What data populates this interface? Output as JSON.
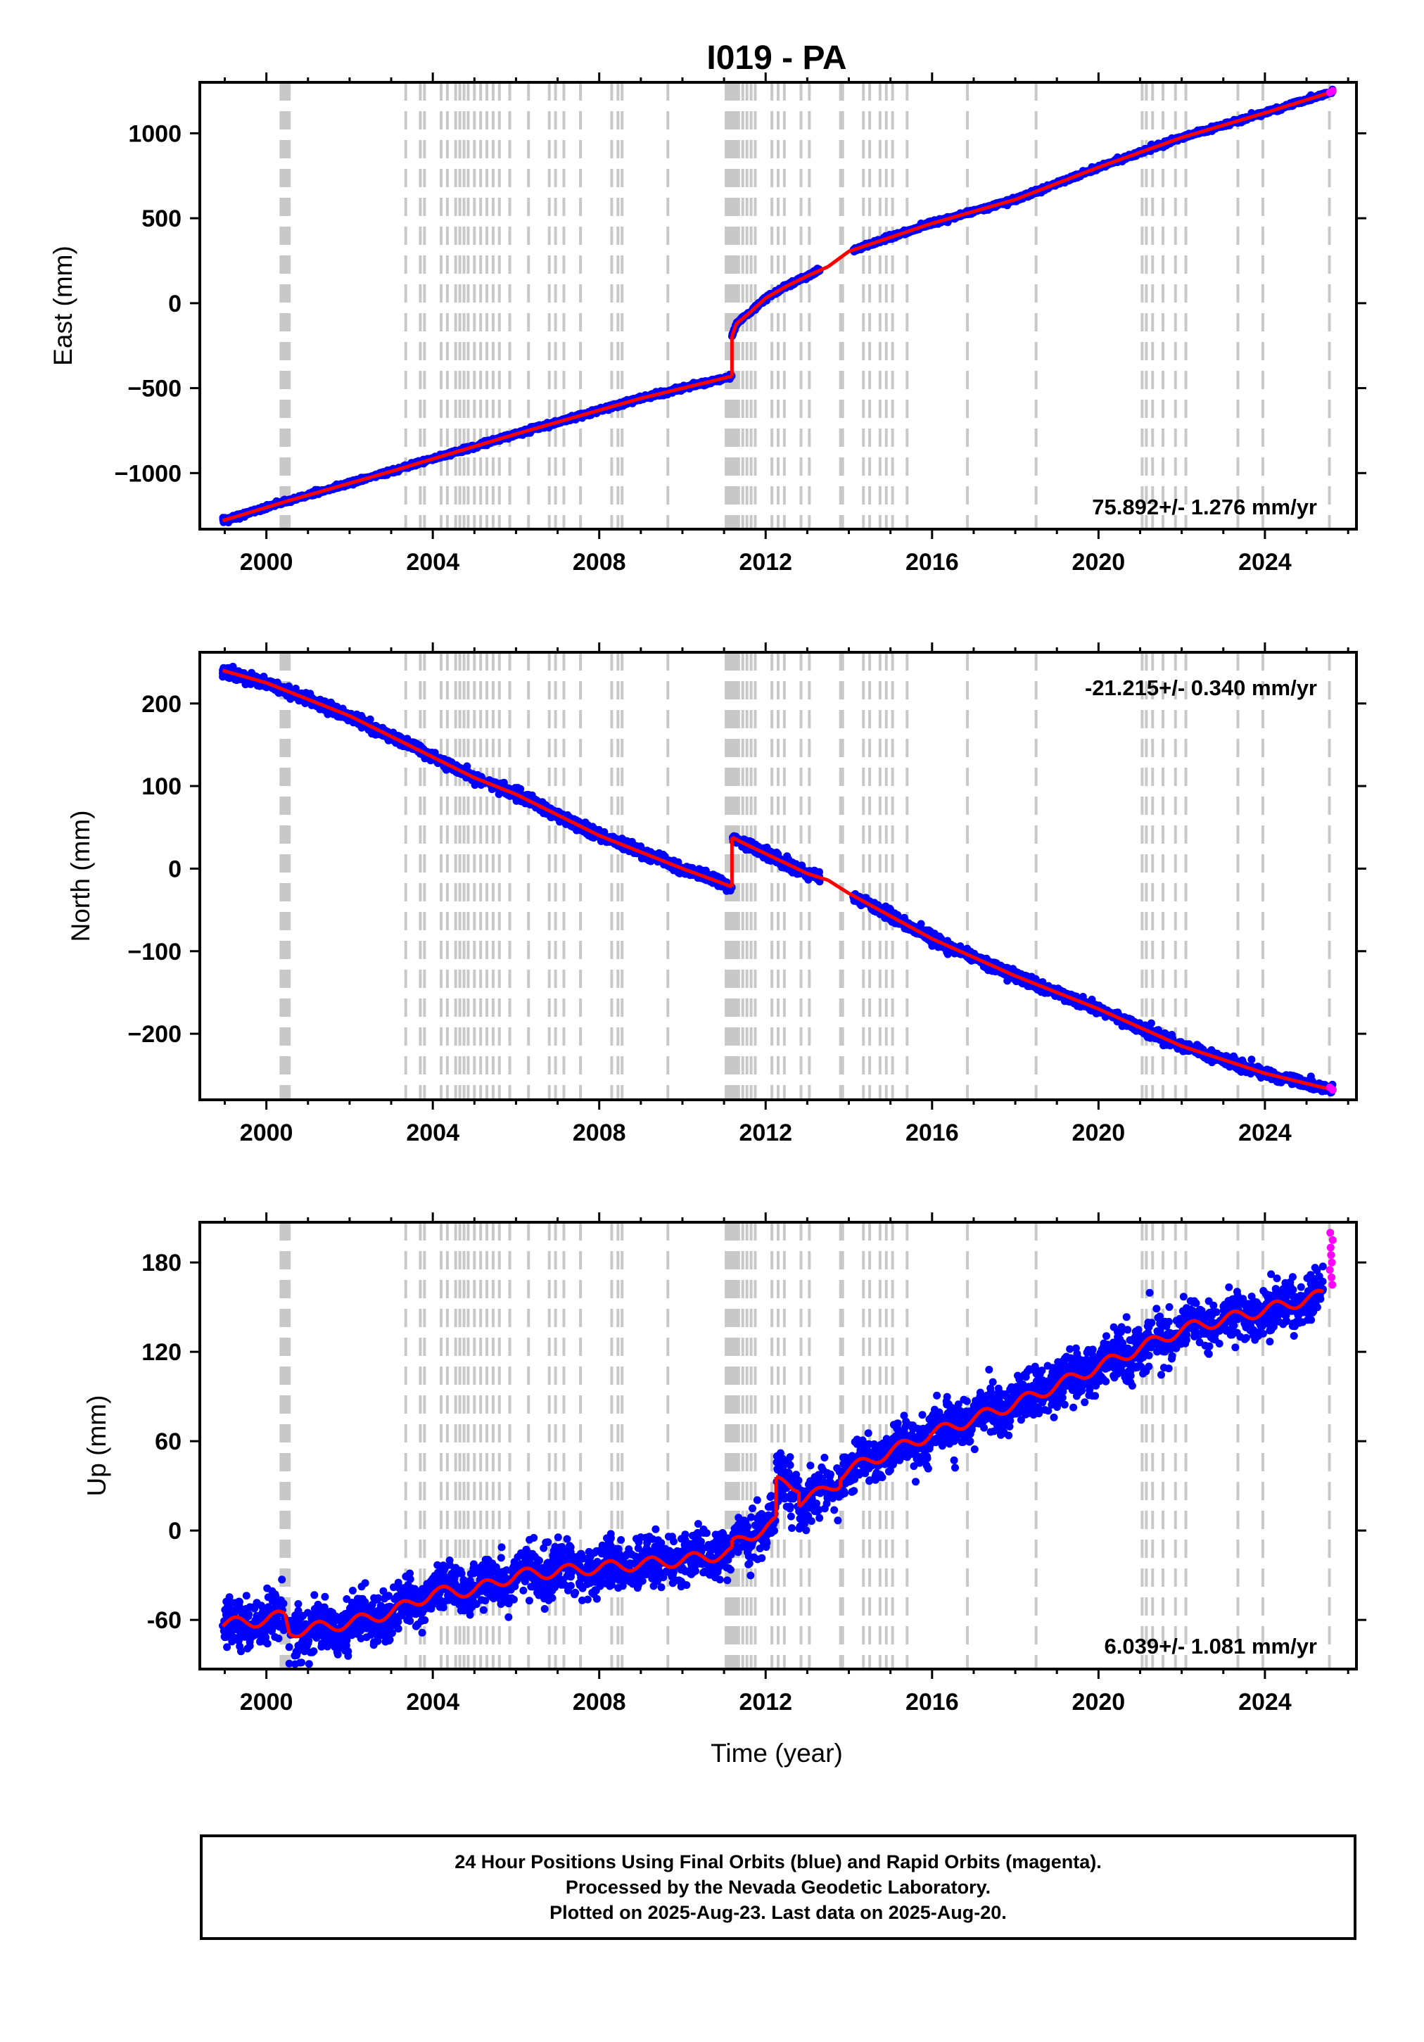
{
  "title": "I019 - PA",
  "x_label": "Time (year)",
  "colors": {
    "final_orbits": "#0000ff",
    "rapid_orbits": "#ff00ff",
    "model": "#ff0000",
    "events": "#c8c8c8"
  },
  "footer": {
    "line1": "24 Hour Positions Using Final Orbits (blue) and Rapid Orbits (magenta).",
    "line2": "Processed by the Nevada Geodetic Laboratory.",
    "line3": "Plotted on 2025-Aug-23. Last data on 2025-Aug-20."
  },
  "chart_data": [
    {
      "type": "scatter",
      "title": "I019 - PA",
      "ylabel": "East (mm)",
      "xlabel": "",
      "rate_label": "75.892+/- 1.276 mm/yr",
      "xlim": [
        1998.4,
        2026.2
      ],
      "ylim": [
        -1330,
        1300
      ],
      "x_ticks": [
        2000,
        2004,
        2008,
        2012,
        2016,
        2020,
        2024
      ],
      "x_tick_labels": [
        "2000",
        "2004",
        "2008",
        "2012",
        "2016",
        "2020",
        "2024"
      ],
      "y_ticks": [
        -1000,
        -500,
        0,
        500,
        1000
      ],
      "y_tick_labels": [
        "−1000",
        "−500",
        "0",
        "500",
        "1000"
      ],
      "segments": [
        {
          "x": [
            1998.95,
            2000.5,
            2003.0,
            2006.0,
            2009.0,
            2011.19
          ],
          "y": [
            -1280,
            -1165,
            -990,
            -770,
            -560,
            -430
          ]
        },
        {
          "x": [
            2011.19,
            2011.3,
            2011.6,
            2012.0,
            2012.5,
            2013.0,
            2013.5
          ],
          "y": [
            -195,
            -120,
            -60,
            30,
            100,
            160,
            215
          ]
        },
        {
          "x": [
            2013.5,
            2014.0,
            2016.0,
            2018.0,
            2020.0,
            2022.0,
            2024.0,
            2025.63
          ],
          "y": [
            215,
            305,
            470,
            610,
            800,
            975,
            1120,
            1245
          ]
        }
      ],
      "gap": [
        2013.3,
        2014.1
      ],
      "scatter_sigma": 6,
      "rapid": {
        "x": [
          2025.56,
          2025.63
        ],
        "y": [
          1240,
          1250
        ]
      },
      "grid": false,
      "legend": "none"
    },
    {
      "type": "scatter",
      "ylabel": "North (mm)",
      "xlabel": "",
      "rate_label": "-21.215+/- 0.340 mm/yr",
      "xlim": [
        1998.4,
        2026.2
      ],
      "ylim": [
        -280,
        262
      ],
      "x_ticks": [
        2000,
        2004,
        2008,
        2012,
        2016,
        2020,
        2024
      ],
      "x_tick_labels": [
        "2000",
        "2004",
        "2008",
        "2012",
        "2016",
        "2020",
        "2024"
      ],
      "y_ticks": [
        -200,
        -100,
        0,
        100,
        200
      ],
      "y_tick_labels": [
        "−200",
        "−100",
        "0",
        "100",
        "200"
      ],
      "segments": [
        {
          "x": [
            1998.95,
            2000.0,
            2001.0,
            2002.0,
            2003.0,
            2004.0,
            2005.0,
            2006.0,
            2007.0,
            2008.0,
            2009.0,
            2010.0,
            2011.19
          ],
          "y": [
            240,
            225,
            205,
            185,
            160,
            135,
            110,
            90,
            65,
            40,
            20,
            0,
            -22
          ]
        },
        {
          "x": [
            2011.19,
            2011.5,
            2012.0,
            2012.5,
            2013.0,
            2013.5
          ],
          "y": [
            38,
            30,
            18,
            6,
            -6,
            -14
          ]
        },
        {
          "x": [
            2013.5,
            2014.0,
            2016.0,
            2018.0,
            2020.0,
            2022.0,
            2024.0,
            2025.63
          ],
          "y": [
            -14,
            -30,
            -85,
            -130,
            -170,
            -215,
            -248,
            -268
          ]
        }
      ],
      "gap": [
        2013.3,
        2014.1
      ],
      "scatter_sigma": 3,
      "rapid": {
        "x": [
          2025.56,
          2025.63
        ],
        "y": [
          -265,
          -268
        ]
      },
      "grid": false,
      "legend": "none"
    },
    {
      "type": "scatter",
      "ylabel": "Up (mm)",
      "xlabel": "Time (year)",
      "rate_label": "6.039+/- 1.081 mm/yr",
      "xlim": [
        1998.4,
        2026.2
      ],
      "ylim": [
        -93,
        207
      ],
      "x_ticks": [
        2000,
        2004,
        2008,
        2012,
        2016,
        2020,
        2024
      ],
      "x_tick_labels": [
        "2000",
        "2004",
        "2008",
        "2012",
        "2016",
        "2020",
        "2024"
      ],
      "y_ticks": [
        -60,
        0,
        60,
        120,
        180
      ],
      "y_tick_labels": [
        "-60",
        "0",
        "60",
        "120",
        "180"
      ],
      "segments": [
        {
          "x": [
            1998.95,
            2000.0,
            2000.45
          ],
          "y": [
            -63,
            -60,
            -57
          ]
        },
        {
          "x": [
            2000.55,
            2002.0,
            2003.0,
            2004.0,
            2005.0,
            2006.0,
            2008.0,
            2010.0,
            2011.19
          ],
          "y": [
            -68,
            -62,
            -55,
            -42,
            -40,
            -30,
            -25,
            -20,
            -15
          ]
        },
        {
          "x": [
            2011.19,
            2011.5,
            2012.0,
            2012.25
          ],
          "y": [
            -10,
            -5,
            2,
            5
          ]
        },
        {
          "x": [
            2012.25,
            2012.5,
            2012.8
          ],
          "y": [
            32,
            32,
            30
          ]
        },
        {
          "x": [
            2012.8,
            2013.3,
            2013.8
          ],
          "y": [
            20,
            25,
            33
          ]
        },
        {
          "x": [
            2013.8,
            2014.5,
            2016.0,
            2018.0,
            2020.0,
            2022.0,
            2024.0,
            2025.4
          ],
          "y": [
            38,
            47,
            65,
            85,
            110,
            135,
            148,
            158
          ]
        }
      ],
      "seasonal_amp": 4,
      "scatter_sigma": 8,
      "rapid": {
        "x": [
          2025.56,
          2025.57,
          2025.58,
          2025.59,
          2025.6,
          2025.61,
          2025.62,
          2025.63
        ],
        "y": [
          175,
          200,
          190,
          185,
          170,
          180,
          165,
          195
        ]
      },
      "grid": false,
      "legend": "none"
    }
  ],
  "event_lines": [
    2000.35,
    2000.4,
    2000.45,
    2000.5,
    2000.55,
    2003.35,
    2003.7,
    2003.8,
    2004.2,
    2004.35,
    2004.55,
    2004.65,
    2004.75,
    2004.85,
    2005.0,
    2005.15,
    2005.3,
    2005.45,
    2005.6,
    2005.85,
    2006.3,
    2006.8,
    2006.95,
    2007.15,
    2007.55,
    2008.3,
    2008.45,
    2008.55,
    2009.65,
    2011.05,
    2011.1,
    2011.15,
    2011.2,
    2011.25,
    2011.3,
    2011.35,
    2011.45,
    2011.55,
    2011.65,
    2011.75,
    2012.15,
    2012.3,
    2012.45,
    2012.85,
    2013.05,
    2013.8,
    2013.85,
    2014.35,
    2014.5,
    2014.75,
    2014.9,
    2015.05,
    2015.4,
    2016.85,
    2018.5,
    2021.05,
    2021.15,
    2021.3,
    2021.55,
    2021.85,
    2022.1,
    2023.35,
    2023.95,
    2025.55
  ]
}
